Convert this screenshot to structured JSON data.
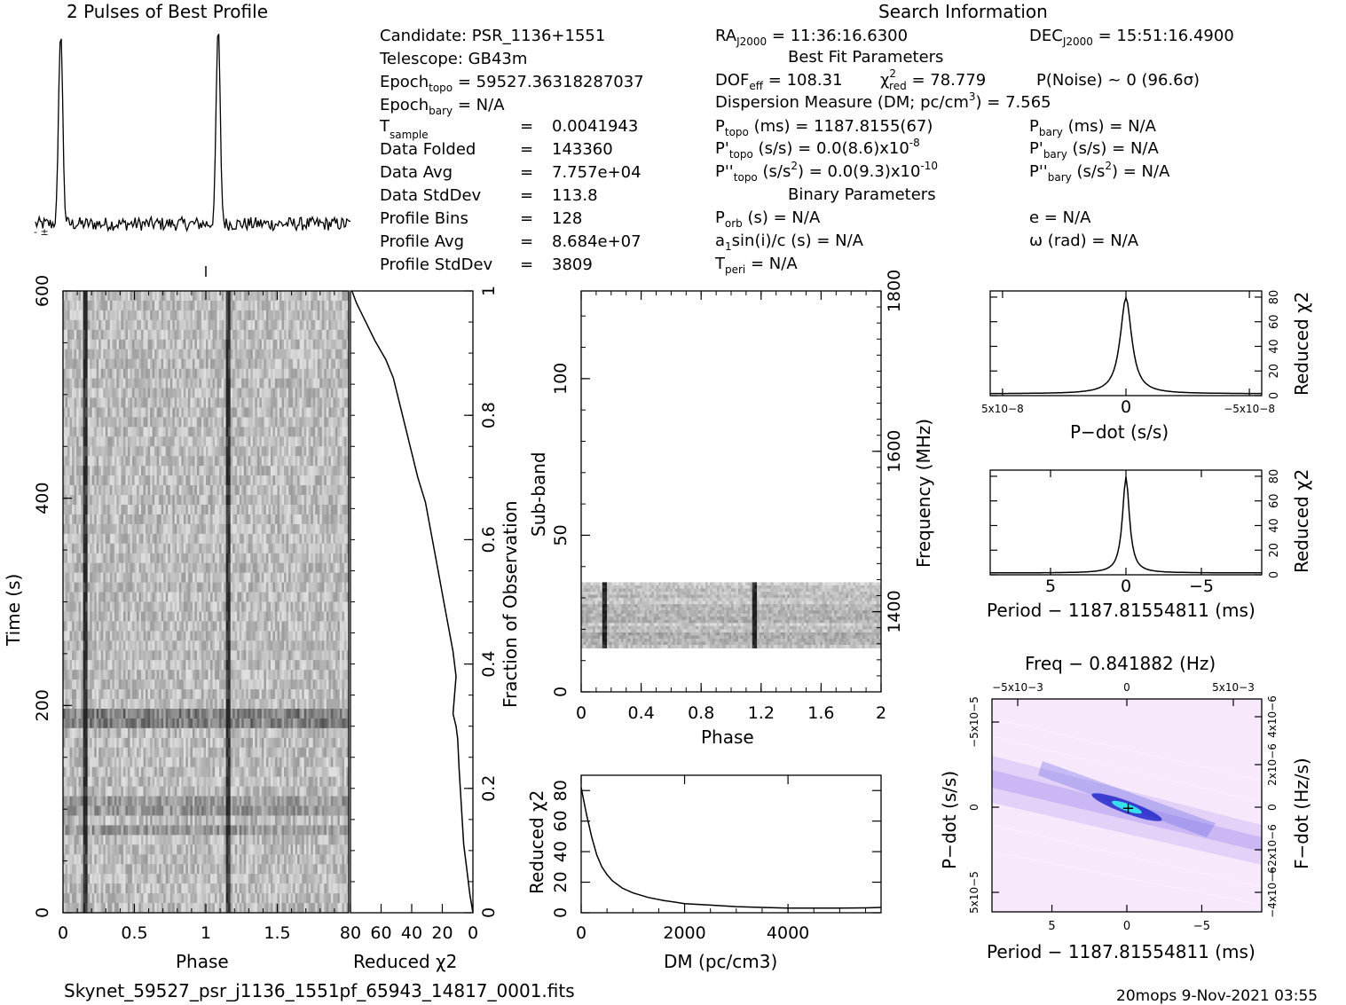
{
  "title": "2 Pulses of Best Profile",
  "search_title": "Search Information",
  "info": {
    "candidate": "Candidate:  PSR_1136+1551",
    "telescope": "Telescope:  GB43m",
    "epoch_topo_main": "Epoch",
    "epoch_topo_sub": "topo",
    "epoch_topo_val": " = 59527.36318287037",
    "epoch_bary_main": "Epoch",
    "epoch_bary_sub": "bary",
    "epoch_bary_val": " = N/A",
    "t_sample_main": "T",
    "t_sample_sub": "sample",
    "t_sample_eq": "=",
    "t_sample_val": "0.0041943",
    "rows": [
      {
        "label": "Data Folded",
        "value": "143360"
      },
      {
        "label": "Data Avg",
        "value": "7.757e+04"
      },
      {
        "label": "Data StdDev",
        "value": "113.8"
      },
      {
        "label": "Profile Bins",
        "value": "128"
      },
      {
        "label": "Profile Avg",
        "value": "8.684e+07"
      },
      {
        "label": "Profile StdDev",
        "value": "3809"
      }
    ]
  },
  "fit": {
    "ra_main": "RA",
    "ra_sub": "J2000",
    "ra_val": " = 11:36:16.6300",
    "dec_main": "DEC",
    "dec_sub": "J2000",
    "dec_val": " = 15:51:16.4900",
    "best_fit_title": "Best Fit Parameters",
    "dof_main": "DOF",
    "dof_sub": "eff",
    "dof_val": " = 108.31",
    "chi_main": "χ",
    "chi_sup": "2",
    "chi_sub": "red",
    "chi_val": " = 78.779",
    "pnoise": "P(Noise) ~ 0    (96.6σ)",
    "dm_line_a": "Dispersion Measure (DM; pc/cm",
    "dm_line_sup": "3",
    "dm_line_b": ") = 7.565",
    "ptopo_main": "P",
    "ptopo_sub": "topo",
    "ptopo_val": " (ms) =  1187.8155(67)",
    "pbary_main": "P",
    "pbary_sub": "bary",
    "pbary_val": " (ms) = N/A",
    "pdtopo_main": "P'",
    "pdtopo_sub": "topo",
    "pdtopo_val": " (s/s) = 0.0(8.6)x10",
    "pdtopo_exp": "-8",
    "pdbary_main": "P'",
    "pdbary_sub": "bary",
    "pdbary_val": " (s/s) = N/A",
    "pddtopo_main": "P''",
    "pddtopo_sub": "topo",
    "pddtopo_val": " (s/s",
    "pddtopo_sup": "2",
    "pddtopo_val2": ") = 0.0(9.3)x10",
    "pddtopo_exp": "-10",
    "pddbary_main": "P''",
    "pddbary_sub": "bary",
    "pddbary_val": " (s/s",
    "pddbary_sup": "2",
    "pddbary_val2": ") = N/A",
    "binary_title": "Binary Parameters",
    "porb_main": "P",
    "porb_sub": "orb",
    "porb_val": " (s) = N/A",
    "e_val": "e = N/A",
    "a1_main": "a",
    "a1_sub": "1",
    "a1_val": "sin(i)/c (s) = N/A",
    "omega_val": "ω (rad) = N/A",
    "tperi_main": "T",
    "tperi_sub": "peri",
    "tperi_val": " = N/A"
  },
  "footer": {
    "filename": "Skynet_59527_psr_j1136_1551pf_65943_14817_0001.fits",
    "stamp": "20mops   9-Nov-2021 03:55"
  },
  "colors": {
    "ink": "#000000",
    "grey_dark": "#444444",
    "pp_bg": "#f7e9fb",
    "pp_blue": "#1a22c8",
    "pp_cyan": "#35e0ea"
  },
  "chart_data": [
    {
      "type": "line",
      "name": "profile",
      "title": "2 Pulses of Best Profile",
      "xlabel": "",
      "ylabel": "",
      "x_range": [
        0,
        2
      ],
      "peak_phases": [
        0.16,
        1.16
      ],
      "peak_width": 0.018,
      "baseline_level": 0.08,
      "noise_level": 0.035
    },
    {
      "type": "heatmap",
      "name": "time-phase",
      "xlabel": "Phase",
      "ylabel": "Time (s)",
      "x_ticks": [
        "0",
        "0.5",
        "1",
        "1.5"
      ],
      "x_range": [
        0,
        2
      ],
      "y_ticks": [
        "0",
        "200",
        "400",
        "600"
      ],
      "y_range": [
        0,
        600
      ],
      "pulse_phases": [
        0.16,
        1.16
      ],
      "bright_rows_s": [
        187,
        80,
        103
      ]
    },
    {
      "type": "line",
      "name": "reduced-chi2-vs-time",
      "xlabel": "Reduced χ2",
      "ylabel": "Fraction of Observation",
      "x_ticks": [
        "80",
        "60",
        "40",
        "20",
        "0"
      ],
      "x_range": [
        80,
        0
      ],
      "y_ticks": [
        "0",
        "0.2",
        "0.4",
        "0.6",
        "0.8",
        "1"
      ],
      "y_range": [
        0,
        1
      ],
      "points": [
        [
          0,
          0
        ],
        [
          2,
          0.03
        ],
        [
          4,
          0.07
        ],
        [
          6,
          0.11
        ],
        [
          7,
          0.15
        ],
        [
          8,
          0.19
        ],
        [
          9,
          0.23
        ],
        [
          10,
          0.28
        ],
        [
          11,
          0.3
        ],
        [
          13,
          0.32
        ],
        [
          12,
          0.35
        ],
        [
          11,
          0.38
        ],
        [
          13,
          0.42
        ],
        [
          16,
          0.46
        ],
        [
          19,
          0.5
        ],
        [
          22,
          0.54
        ],
        [
          25,
          0.58
        ],
        [
          28,
          0.62
        ],
        [
          31,
          0.66
        ],
        [
          36,
          0.7
        ],
        [
          40,
          0.74
        ],
        [
          44,
          0.78
        ],
        [
          48,
          0.82
        ],
        [
          52,
          0.86
        ],
        [
          57,
          0.89
        ],
        [
          64,
          0.92
        ],
        [
          70,
          0.95
        ],
        [
          76,
          0.98
        ],
        [
          79,
          1.0
        ]
      ]
    },
    {
      "type": "heatmap",
      "name": "subband-phase",
      "xlabel": "Phase",
      "ylabel": "Sub-band",
      "x_ticks": [
        "0",
        "0.4",
        "0.8",
        "1.2",
        "1.6",
        "2"
      ],
      "x_range": [
        0,
        2
      ],
      "y_ticks": [
        "0",
        "50",
        "100"
      ],
      "y_range": [
        0,
        128
      ],
      "right_label": "Frequency (MHz)",
      "right_ticks": [
        "1400",
        "1600",
        "1800"
      ],
      "filled_subbands": [
        14,
        35
      ],
      "pulse_phases": [
        0.16,
        1.16
      ]
    },
    {
      "type": "line",
      "name": "chi2-vs-dm",
      "xlabel": "DM (pc/cm3)",
      "ylabel": "Reduced χ2",
      "x_ticks": [
        "0",
        "2000",
        "4000"
      ],
      "x_range": [
        0,
        5800
      ],
      "y_ticks": [
        "0",
        "20",
        "40",
        "60",
        "80"
      ],
      "y_range": [
        0,
        90
      ],
      "points": [
        [
          0,
          82
        ],
        [
          100,
          65
        ],
        [
          200,
          50
        ],
        [
          300,
          38
        ],
        [
          400,
          30
        ],
        [
          500,
          25
        ],
        [
          600,
          21
        ],
        [
          800,
          16
        ],
        [
          1000,
          13
        ],
        [
          1300,
          10
        ],
        [
          1600,
          8
        ],
        [
          2000,
          6
        ],
        [
          2500,
          5
        ],
        [
          3000,
          4
        ],
        [
          3500,
          3.5
        ],
        [
          4000,
          3
        ],
        [
          4500,
          3
        ],
        [
          5000,
          3
        ],
        [
          5500,
          3.2
        ],
        [
          5800,
          3.5
        ]
      ]
    },
    {
      "type": "line",
      "name": "chi2-vs-pdot",
      "xlabel": "P−dot (s/s)",
      "ylabel": "Reduced χ2",
      "x_ticks": [
        "5x10−8",
        "0",
        "−5x10−8"
      ],
      "x_range": [
        5.5,
        -5.5
      ],
      "y_ticks": [
        "0",
        "20",
        "40",
        "60",
        "80"
      ],
      "y_range": [
        0,
        85
      ],
      "peak": 78
    },
    {
      "type": "line",
      "name": "chi2-vs-period",
      "xlabel": "Period − 1187.81554811 (ms)",
      "ylabel": "Reduced χ2",
      "x_ticks": [
        "5",
        "0",
        "−5"
      ],
      "x_range": [
        9,
        -9
      ],
      "y_ticks": [
        "0",
        "20",
        "40",
        "60",
        "80"
      ],
      "y_range": [
        0,
        85
      ],
      "peak": 78
    },
    {
      "type": "heatmap",
      "name": "period-pdot-plane",
      "xlabel": "Period − 1187.81554811 (ms)",
      "ylabel": "P−dot (s/s)",
      "top_label": "Freq − 0.841882 (Hz)",
      "right_label": "F−dot (Hz/s)",
      "x_ticks": [
        "5",
        "0",
        "−5"
      ],
      "top_ticks": [
        "−5x10−3",
        "0",
        "5x10−3"
      ],
      "y_ticks": [
        "5x10−5",
        "0",
        "−5x10−5"
      ],
      "right_ticks": [
        "−4x10−6",
        "−2x10−6",
        "0",
        "2x10−6",
        "4x10−6"
      ]
    }
  ]
}
